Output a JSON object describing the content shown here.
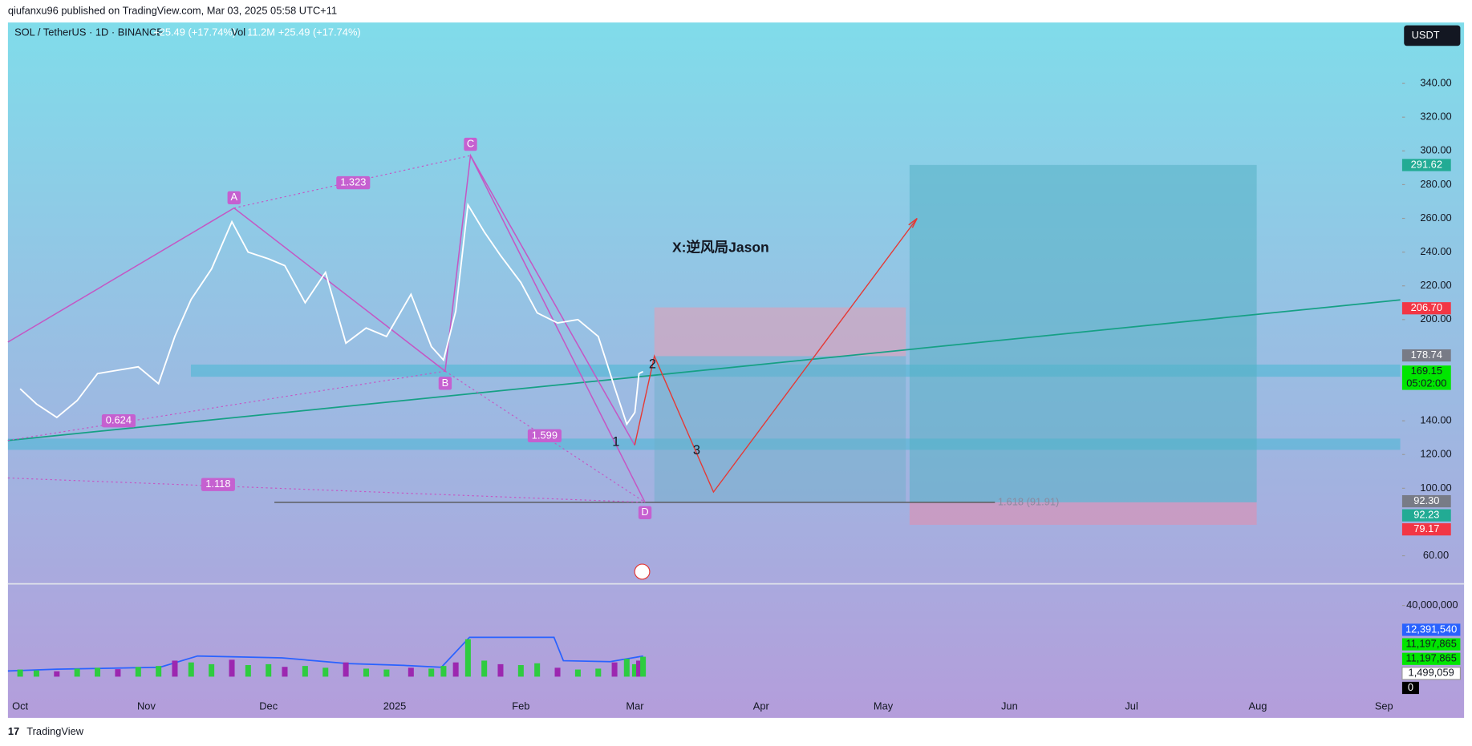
{
  "header": {
    "published": "qiufanxu96 published on TradingView.com, Mar 03, 2025 05:58 UTC+11"
  },
  "legend": {
    "symbol": "SOL / TetherUS · 1D · BINANCE",
    "change": "+25.49 (+17.74%)",
    "vol_label": "Vol",
    "vol_value": "11.2M",
    "vol_change": "+25.49 (+17.74%)"
  },
  "currency": "USDT",
  "footer": {
    "brand": "TradingView"
  },
  "chart_data": [
    {
      "type": "line",
      "color": "#ffffff",
      "x": [
        "2024-10-01",
        "2024-10-05",
        "2024-10-10",
        "2024-10-15",
        "2024-10-20",
        "2024-10-25",
        "2024-10-30",
        "2024-11-04",
        "2024-11-08",
        "2024-11-12",
        "2024-11-17",
        "2024-11-22",
        "2024-11-26",
        "2024-12-01",
        "2024-12-05",
        "2024-12-10",
        "2024-12-15",
        "2024-12-20",
        "2024-12-25",
        "2024-12-30",
        "2025-01-05",
        "2025-01-10",
        "2025-01-13",
        "2025-01-16",
        "2025-01-19",
        "2025-01-23",
        "2025-01-27",
        "2025-02-01",
        "2025-02-05",
        "2025-02-10",
        "2025-02-15",
        "2025-02-20",
        "2025-02-24",
        "2025-02-27",
        "2025-03-01",
        "2025-03-02",
        "2025-03-03"
      ],
      "values": [
        159,
        150,
        142,
        152,
        168,
        170,
        172,
        162,
        190,
        212,
        230,
        258,
        240,
        236,
        232,
        210,
        228,
        186,
        195,
        190,
        215,
        184,
        176,
        205,
        268,
        252,
        238,
        222,
        204,
        198,
        200,
        190,
        160,
        138,
        145,
        168,
        169.15
      ],
      "xlim": [
        "2024-09-28",
        "2025-09-05"
      ],
      "xticks": [
        {
          "value": "2024-10-01",
          "label": "Oct"
        },
        {
          "value": "2024-11-01",
          "label": "Nov"
        },
        {
          "value": "2024-12-01",
          "label": "Dec"
        },
        {
          "value": "2025-01-01",
          "label": "2025"
        },
        {
          "value": "2025-02-01",
          "label": "Feb"
        },
        {
          "value": "2025-03-01",
          "label": "Mar"
        },
        {
          "value": "2025-04-01",
          "label": "Apr"
        },
        {
          "value": "2025-05-01",
          "label": "May"
        },
        {
          "value": "2025-06-01",
          "label": "Jun"
        },
        {
          "value": "2025-07-01",
          "label": "Jul"
        },
        {
          "value": "2025-08-01",
          "label": "Aug"
        },
        {
          "value": "2025-09-01",
          "label": "Sep"
        }
      ],
      "ylim": [
        43.89,
        376.11
      ],
      "yticks": [
        {
          "value": 60,
          "label": "60.00"
        },
        {
          "value": 100,
          "label": "100.00"
        },
        {
          "value": 120,
          "label": "120.00"
        },
        {
          "value": 140,
          "label": "140.00"
        },
        {
          "value": 200,
          "label": "200.00"
        },
        {
          "value": 220,
          "label": "220.00"
        },
        {
          "value": 240,
          "label": "240.00"
        },
        {
          "value": 260,
          "label": "260.00"
        },
        {
          "value": 280,
          "label": "280.00"
        },
        {
          "value": 300,
          "label": "300.00"
        },
        {
          "value": 320,
          "label": "320.00"
        },
        {
          "value": 340,
          "label": "340.00"
        }
      ],
      "price_tags": [
        {
          "value": 291.62,
          "label": "291.62",
          "color": "#22ab94"
        },
        {
          "value": 206.7,
          "label": "206.70",
          "color": "#f23645"
        },
        {
          "value": 178.74,
          "label": "178.74",
          "color": "#787b86"
        },
        {
          "value": 169.15,
          "label": "169.15",
          "countdown": "05:02:00",
          "color": "#00e600"
        },
        {
          "value": 92.3,
          "label": "92.30",
          "color": "#787b86"
        },
        {
          "value": 92.23,
          "label": "92.23",
          "color": "#22ab94"
        },
        {
          "value": 79.17,
          "label": "79.17",
          "color": "#f23645"
        }
      ],
      "annotations": {
        "points": [
          "A",
          "B",
          "C",
          "D"
        ],
        "ratios": [
          "1.323",
          "0.624",
          "1.599",
          "1.118"
        ],
        "waves": [
          "1",
          "2",
          "3"
        ],
        "author": "X:逆风局Jason",
        "fib": "1.618 (91.91)"
      }
    },
    {
      "type": "bar",
      "color": "#2ecc40",
      "x": [
        "2024-10-01",
        "2024-10-05",
        "2024-10-10",
        "2024-10-15",
        "2024-10-20",
        "2024-10-25",
        "2024-10-30",
        "2024-11-04",
        "2024-11-08",
        "2024-11-12",
        "2024-11-17",
        "2024-11-22",
        "2024-11-26",
        "2024-12-01",
        "2024-12-05",
        "2024-12-10",
        "2024-12-15",
        "2024-12-20",
        "2024-12-25",
        "2024-12-30",
        "2025-01-05",
        "2025-01-10",
        "2025-01-13",
        "2025-01-16",
        "2025-01-19",
        "2025-01-23",
        "2025-01-27",
        "2025-02-01",
        "2025-02-05",
        "2025-02-10",
        "2025-02-15",
        "2025-02-20",
        "2025-02-24",
        "2025-02-27",
        "2025-03-01",
        "2025-03-02",
        "2025-03-03"
      ],
      "values": [
        4000000,
        3500000,
        3000000,
        4500000,
        5000000,
        4200000,
        5500000,
        6000000,
        9000000,
        8000000,
        7000000,
        9500000,
        6500000,
        7000000,
        5500000,
        6000000,
        5000000,
        8000000,
        4500000,
        4000000,
        5000000,
        4500000,
        6000000,
        8000000,
        21000000,
        9000000,
        7000000,
        6500000,
        7500000,
        5000000,
        4000000,
        4500000,
        8000000,
        10000000,
        7000000,
        9000000,
        11197865
      ],
      "ylim": [
        0,
        51600000
      ],
      "yticks": [
        {
          "value": 40000000,
          "label": "40,000,000"
        }
      ],
      "value_tags": [
        {
          "label": "12,391,540",
          "color": "#2962ff"
        },
        {
          "label": "11,197,865",
          "color": "#00e600"
        },
        {
          "label": "11,197,865",
          "color": "#00e600"
        },
        {
          "label": "1,499,059",
          "color": "#ffffff"
        },
        {
          "label": "0",
          "color": "#000000"
        }
      ]
    }
  ]
}
